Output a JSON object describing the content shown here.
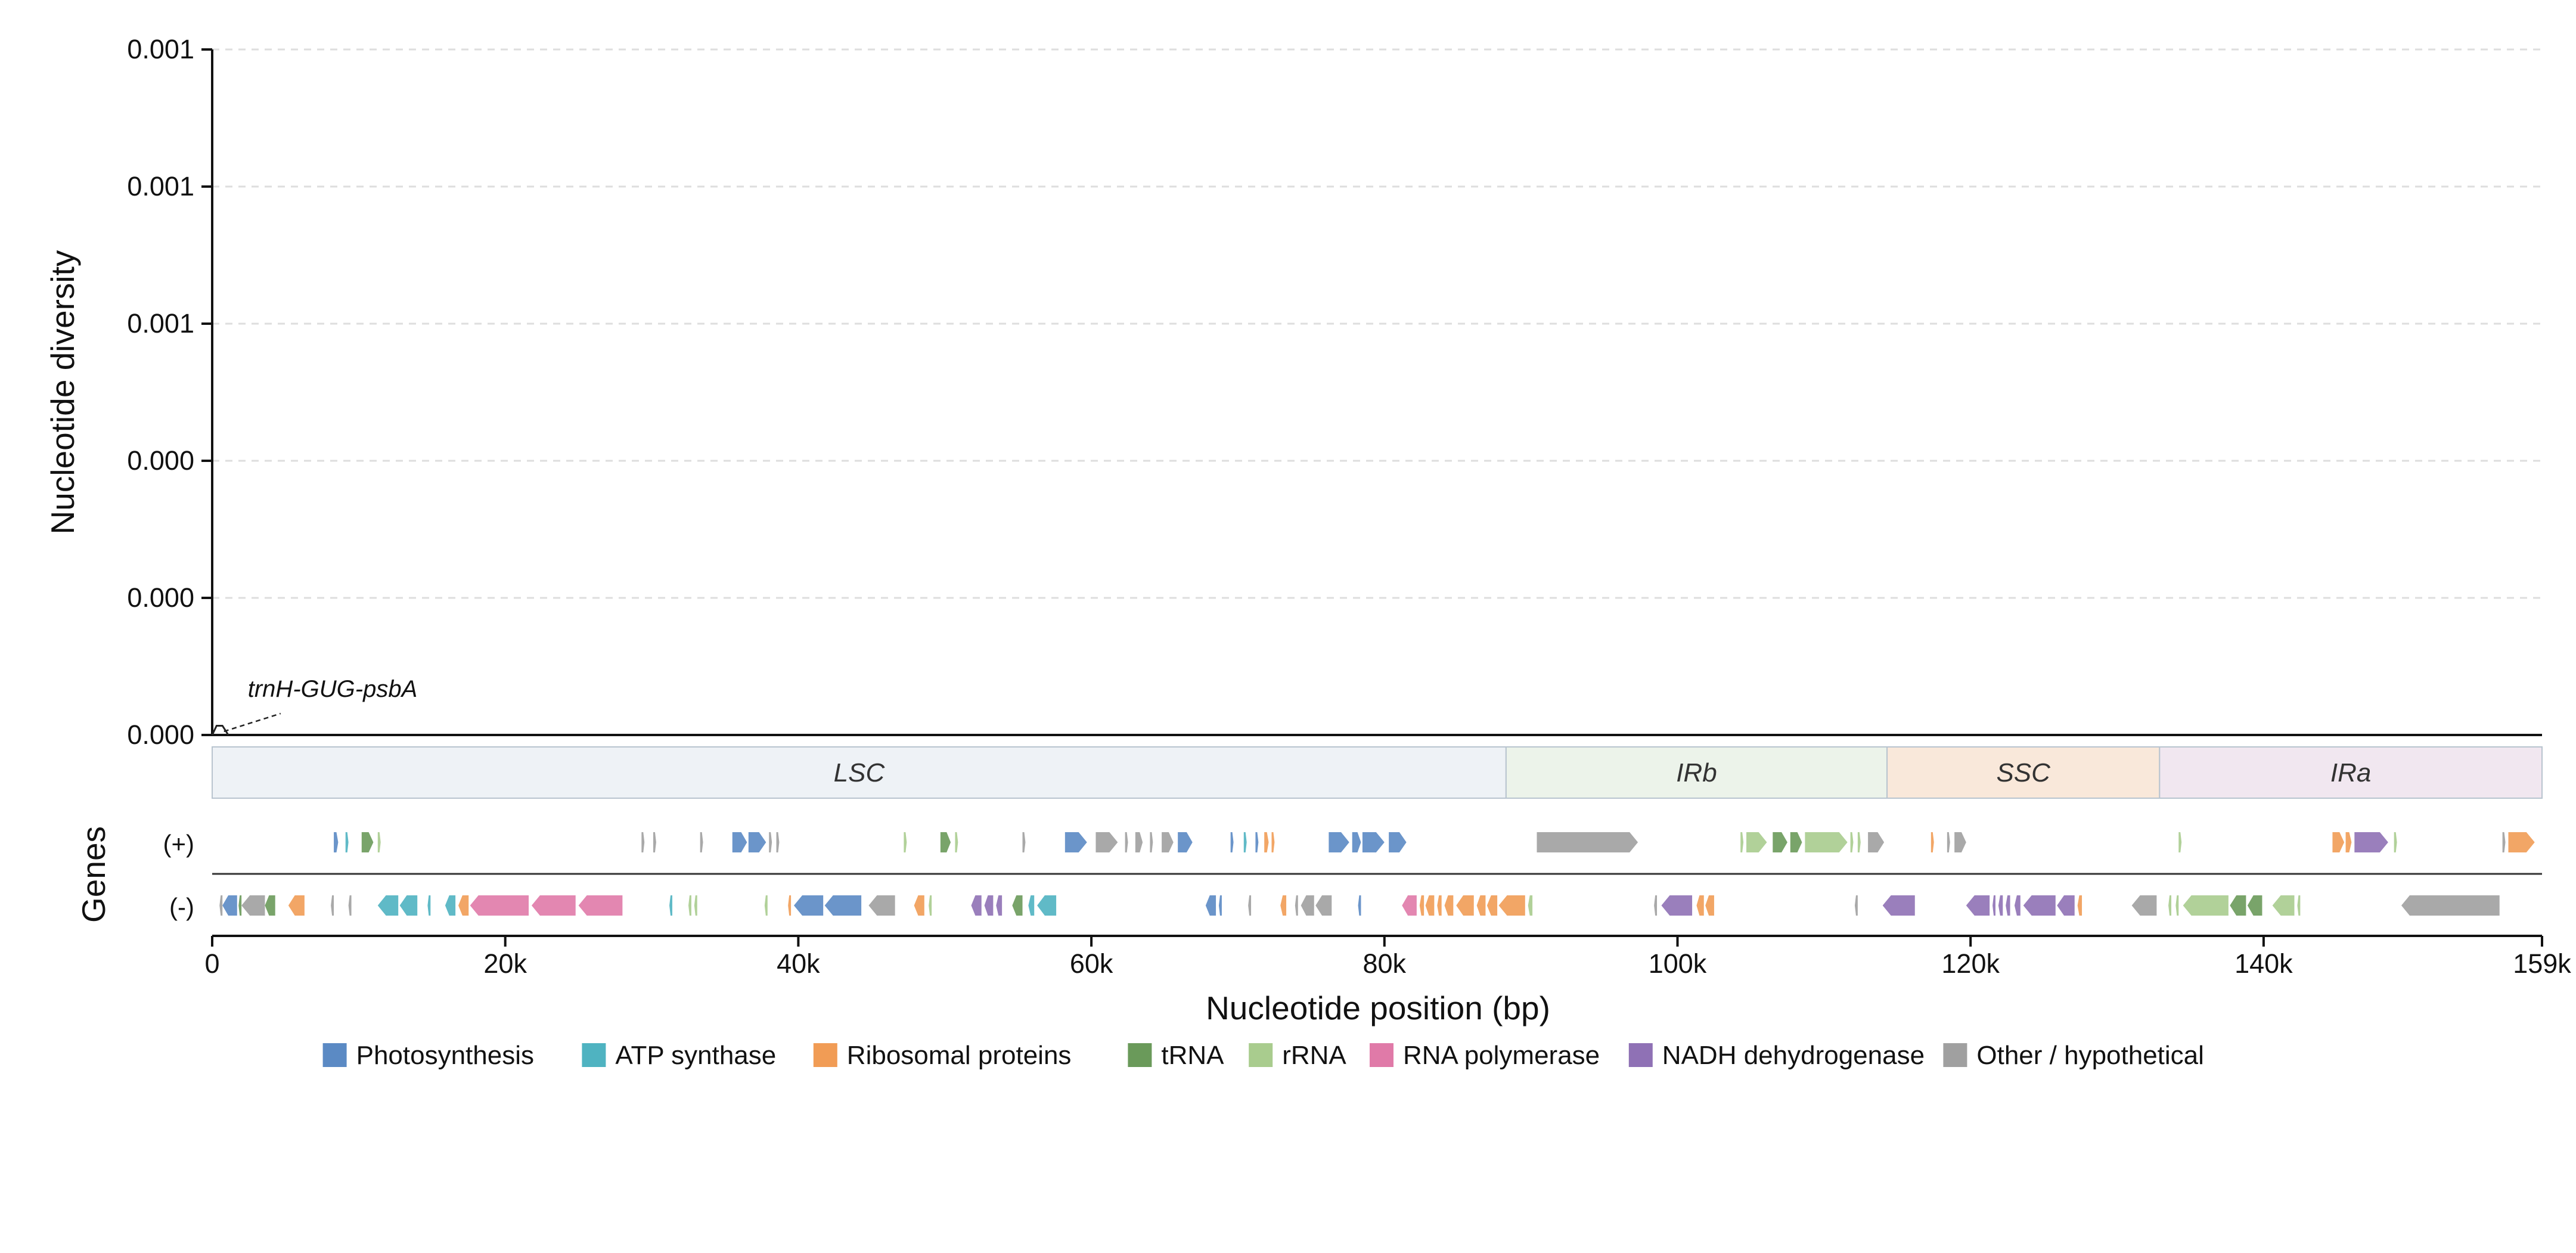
{
  "chart_data": {
    "type": "line",
    "ylabel": "Nucleotide diversity",
    "xlabel": "Nucleotide position (bp)",
    "xlim": [
      0,
      159000
    ],
    "ylim": [
      0,
      0.00125
    ],
    "grid": "horizontal dashed",
    "y_ticks": [
      {
        "value": 0,
        "label": "0.000"
      },
      {
        "value": 0.00025,
        "label": "0.000"
      },
      {
        "value": 0.0005,
        "label": "0.000"
      },
      {
        "value": 0.00075,
        "label": "0.001"
      },
      {
        "value": 0.001,
        "label": "0.001"
      },
      {
        "value": 0.00125,
        "label": "0.001"
      }
    ],
    "x_ticks": [
      {
        "value": 0,
        "label": "0"
      },
      {
        "value": 20000,
        "label": "20k"
      },
      {
        "value": 40000,
        "label": "40k"
      },
      {
        "value": 60000,
        "label": "60k"
      },
      {
        "value": 80000,
        "label": "80k"
      },
      {
        "value": 100000,
        "label": "100k"
      },
      {
        "value": 120000,
        "label": "120k"
      },
      {
        "value": 140000,
        "label": "140k"
      },
      {
        "value": 159000,
        "label": "159k"
      }
    ],
    "series": [
      {
        "x": [
          0,
          300,
          700,
          1100
        ],
        "y": [
          0,
          6e-06,
          6e-06,
          0
        ]
      }
    ],
    "annotations": [
      {
        "text": "trnH-GUG-psbA",
        "x": 600
      }
    ],
    "regions": [
      {
        "name": "LSC",
        "start": 0,
        "end": 88300,
        "color": "#eef2f6"
      },
      {
        "name": "IRb",
        "start": 88300,
        "end": 114300,
        "color": "#ecf3ea"
      },
      {
        "name": "SSC",
        "start": 114300,
        "end": 132900,
        "color": "#f9e8da"
      },
      {
        "name": "IRa",
        "start": 132900,
        "end": 159000,
        "color": "#f1e7f0"
      }
    ],
    "gene_track": {
      "title": "Genes",
      "plus_label": "(+)",
      "minus_label": "(-)",
      "plus": [
        [
          8300,
          8600,
          "photosynthesis"
        ],
        [
          9100,
          9300,
          "atp"
        ],
        [
          10200,
          11000,
          "trna"
        ],
        [
          11300,
          11500,
          "rrna"
        ],
        [
          29300,
          29500,
          "other"
        ],
        [
          30100,
          30300,
          "other"
        ],
        [
          33300,
          33500,
          "other"
        ],
        [
          35500,
          36500,
          "photosynthesis"
        ],
        [
          36600,
          37800,
          "photosynthesis"
        ],
        [
          38000,
          38200,
          "other"
        ],
        [
          38500,
          38700,
          "other"
        ],
        [
          47200,
          47400,
          "rrna"
        ],
        [
          49700,
          50400,
          "trna"
        ],
        [
          50700,
          50900,
          "rrna"
        ],
        [
          55300,
          55500,
          "other"
        ],
        [
          58200,
          59700,
          "photosynthesis"
        ],
        [
          60300,
          61800,
          "other"
        ],
        [
          62300,
          62500,
          "other"
        ],
        [
          63000,
          63500,
          "other"
        ],
        [
          64000,
          64200,
          "other"
        ],
        [
          64800,
          65600,
          "other"
        ],
        [
          65900,
          66900,
          "photosynthesis"
        ],
        [
          69500,
          69700,
          "photosynthesis"
        ],
        [
          70400,
          70600,
          "atp"
        ],
        [
          71200,
          71400,
          "photosynthesis"
        ],
        [
          71800,
          72100,
          "ribosomal"
        ],
        [
          72300,
          72500,
          "ribosomal"
        ],
        [
          76200,
          77600,
          "photosynthesis"
        ],
        [
          77800,
          78400,
          "photosynthesis"
        ],
        [
          78500,
          80000,
          "photosynthesis"
        ],
        [
          80300,
          81500,
          "photosynthesis"
        ],
        [
          90400,
          97300,
          "other"
        ],
        [
          104300,
          104500,
          "rrna"
        ],
        [
          104700,
          106100,
          "rrna"
        ],
        [
          106500,
          107500,
          "trna"
        ],
        [
          107700,
          108500,
          "trna"
        ],
        [
          108700,
          111600,
          "rrna"
        ],
        [
          111800,
          112000,
          "rrna"
        ],
        [
          112300,
          112500,
          "rrna"
        ],
        [
          113000,
          114100,
          "other"
        ],
        [
          117300,
          117500,
          "ribosomal"
        ],
        [
          118400,
          118600,
          "other"
        ],
        [
          118900,
          119700,
          "other"
        ],
        [
          134200,
          134400,
          "rrna"
        ],
        [
          144700,
          145500,
          "ribosomal"
        ],
        [
          145600,
          146000,
          "ribosomal"
        ],
        [
          146200,
          148500,
          "nadh"
        ],
        [
          148900,
          149100,
          "rrna"
        ],
        [
          156300,
          156500,
          "other"
        ],
        [
          156700,
          158500,
          "ribosomal"
        ]
      ],
      "minus": [
        [
          500,
          700,
          "other"
        ],
        [
          700,
          1700,
          "photosynthesis"
        ],
        [
          1800,
          2000,
          "trna"
        ],
        [
          2000,
          3600,
          "other"
        ],
        [
          3600,
          4300,
          "trna"
        ],
        [
          5200,
          6300,
          "ribosomal"
        ],
        [
          8100,
          8300,
          "other"
        ],
        [
          9300,
          9500,
          "other"
        ],
        [
          11300,
          12700,
          "atp"
        ],
        [
          12800,
          14000,
          "atp"
        ],
        [
          14700,
          14900,
          "atp"
        ],
        [
          15900,
          16600,
          "atp"
        ],
        [
          16800,
          17500,
          "ribosomal"
        ],
        [
          17600,
          21600,
          "rnapol"
        ],
        [
          21800,
          24800,
          "rnapol"
        ],
        [
          25000,
          28000,
          "rnapol"
        ],
        [
          31200,
          31400,
          "atp"
        ],
        [
          32500,
          32700,
          "rrna"
        ],
        [
          32900,
          33100,
          "rrna"
        ],
        [
          37700,
          37900,
          "rrna"
        ],
        [
          39300,
          39500,
          "ribosomal"
        ],
        [
          39700,
          41700,
          "photosynthesis"
        ],
        [
          41800,
          44300,
          "photosynthesis"
        ],
        [
          44800,
          46600,
          "other"
        ],
        [
          47900,
          48600,
          "ribosomal"
        ],
        [
          48900,
          49100,
          "rrna"
        ],
        [
          51800,
          52500,
          "nadh"
        ],
        [
          52700,
          53300,
          "nadh"
        ],
        [
          53500,
          53900,
          "nadh"
        ],
        [
          54600,
          55300,
          "trna"
        ],
        [
          55700,
          56100,
          "atp"
        ],
        [
          56300,
          57600,
          "atp"
        ],
        [
          67800,
          68500,
          "photosynthesis"
        ],
        [
          68700,
          68900,
          "photosynthesis"
        ],
        [
          70700,
          70900,
          "other"
        ],
        [
          72900,
          73300,
          "ribosomal"
        ],
        [
          73900,
          74100,
          "other"
        ],
        [
          74300,
          75200,
          "other"
        ],
        [
          75300,
          76400,
          "other"
        ],
        [
          78200,
          78400,
          "photosynthesis"
        ],
        [
          81200,
          82200,
          "rnapol"
        ],
        [
          82400,
          82700,
          "ribosomal"
        ],
        [
          82800,
          83400,
          "ribosomal"
        ],
        [
          83600,
          83900,
          "ribosomal"
        ],
        [
          84100,
          84700,
          "ribosomal"
        ],
        [
          84900,
          86100,
          "ribosomal"
        ],
        [
          86300,
          86900,
          "ribosomal"
        ],
        [
          87000,
          87700,
          "ribosomal"
        ],
        [
          87800,
          89600,
          "ribosomal"
        ],
        [
          89800,
          90100,
          "rrna"
        ],
        [
          98400,
          98600,
          "other"
        ],
        [
          98900,
          101000,
          "nadh"
        ],
        [
          101300,
          101800,
          "ribosomal"
        ],
        [
          101900,
          102500,
          "ribosomal"
        ],
        [
          112100,
          112300,
          "other"
        ],
        [
          114000,
          116200,
          "nadh"
        ],
        [
          119700,
          121300,
          "nadh"
        ],
        [
          121500,
          121700,
          "nadh"
        ],
        [
          121900,
          122200,
          "nadh"
        ],
        [
          122400,
          122700,
          "nadh"
        ],
        [
          123000,
          123400,
          "nadh"
        ],
        [
          123600,
          125800,
          "nadh"
        ],
        [
          125900,
          127100,
          "nadh"
        ],
        [
          127300,
          127600,
          "ribosomal"
        ],
        [
          131000,
          132700,
          "other"
        ],
        [
          133500,
          133700,
          "rrna"
        ],
        [
          134000,
          134200,
          "rrna"
        ],
        [
          134500,
          137600,
          "rrna"
        ],
        [
          137700,
          138800,
          "trna"
        ],
        [
          138900,
          139900,
          "trna"
        ],
        [
          140600,
          142100,
          "rrna"
        ],
        [
          142300,
          142500,
          "rrna"
        ],
        [
          149400,
          156100,
          "other"
        ]
      ]
    },
    "legend": [
      {
        "label": "Photosynthesis",
        "color": "#5b8ac4"
      },
      {
        "label": "ATP synthase",
        "color": "#4fb3c1"
      },
      {
        "label": "Ribosomal proteins",
        "color": "#f19c55"
      },
      {
        "label": "tRNA",
        "color": "#6a9a5a"
      },
      {
        "label": "rRNA",
        "color": "#a9cc8e"
      },
      {
        "label": "RNA polymerase",
        "color": "#e07aa8"
      },
      {
        "label": "NADH dehydrogenase",
        "color": "#8f71b5"
      },
      {
        "label": "Other / hypothetical",
        "color": "#a0a0a0"
      }
    ],
    "category_colors": {
      "photosynthesis": "#5b8ac4",
      "atp": "#4fb3c1",
      "ribosomal": "#f19c55",
      "trna": "#6a9a5a",
      "rrna": "#a9cc8e",
      "rnapol": "#e07aa8",
      "nadh": "#8f71b5",
      "other": "#a0a0a0"
    }
  }
}
